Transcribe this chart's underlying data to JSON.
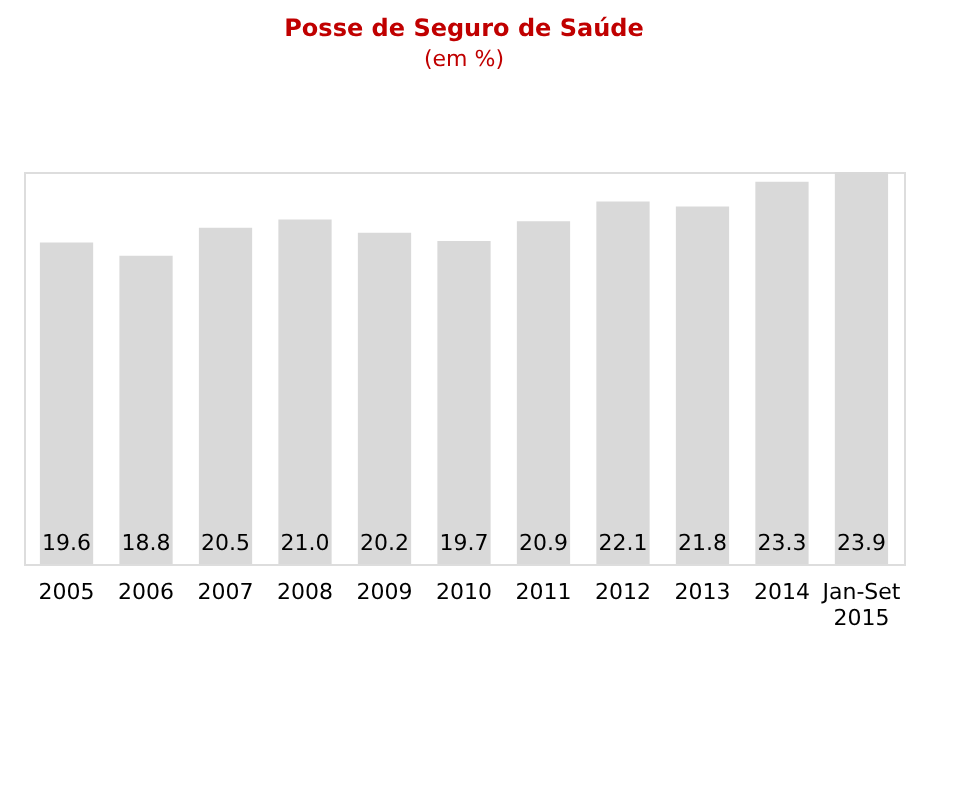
{
  "chart_data": {
    "type": "bar",
    "title": "Posse de Seguro de Saúde",
    "subtitle": "(em %)",
    "categories": [
      "2005",
      "2006",
      "2007",
      "2008",
      "2009",
      "2010",
      "2011",
      "2012",
      "2013",
      "2014",
      "Jan-Set 2015"
    ],
    "values": [
      19.6,
      18.8,
      20.5,
      21.0,
      20.2,
      19.7,
      20.9,
      22.1,
      21.8,
      23.3,
      23.9
    ],
    "value_labels": [
      "19.6",
      "18.8",
      "20.5",
      "21.0",
      "20.2",
      "19.7",
      "20.9",
      "22.1",
      "21.8",
      "23.3",
      "23.9"
    ],
    "color": "#d9d9d9"
  }
}
